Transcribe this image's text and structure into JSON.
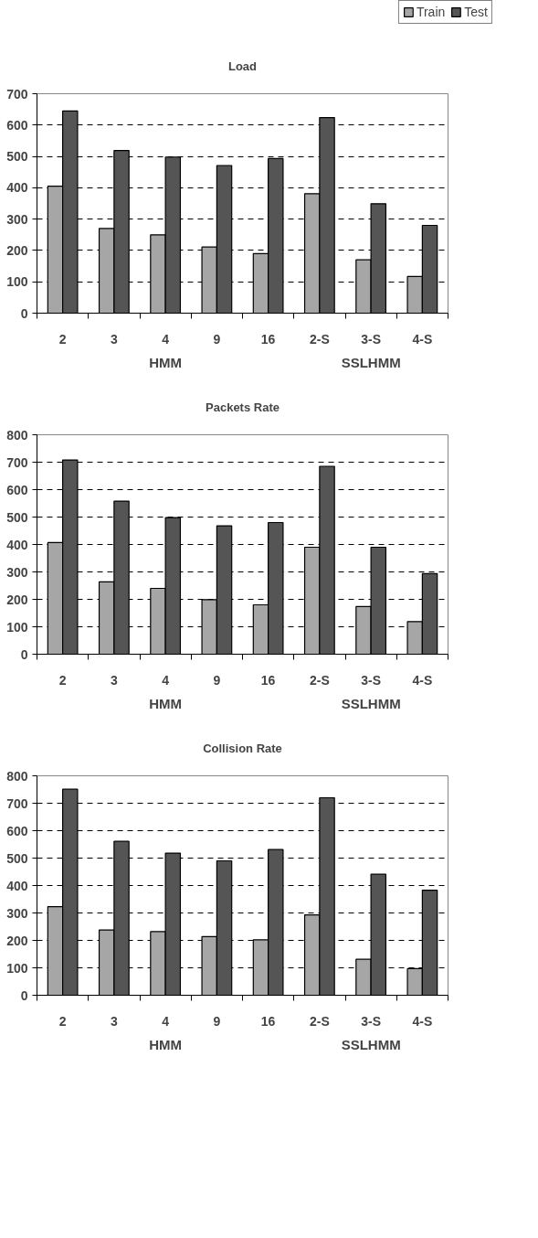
{
  "chart_data": [
    {
      "type": "bar",
      "title": "Load",
      "categories": [
        "2",
        "3",
        "4",
        "9",
        "16",
        "2-S",
        "3-S",
        "4-S"
      ],
      "series": [
        {
          "name": "Train",
          "color": "#a6a6a6",
          "values": [
            405,
            270,
            250,
            211,
            190,
            381,
            170,
            117
          ]
        },
        {
          "name": "Test",
          "color": "#555555",
          "values": [
            645,
            519,
            498,
            471,
            493,
            624,
            349,
            280
          ]
        }
      ],
      "ylim": [
        0,
        700
      ],
      "yticks": [
        0,
        100,
        200,
        300,
        400,
        500,
        600,
        700
      ],
      "grid": "y",
      "legend": "top right",
      "annotations": [
        "HMM",
        "SSLHMM"
      ]
    },
    {
      "type": "bar",
      "title": "Packets Rate",
      "categories": [
        "2",
        "3",
        "4",
        "9",
        "16",
        "2-S",
        "3-S",
        "4-S"
      ],
      "series": [
        {
          "color": "#a6a6a6",
          "values": [
            407,
            264,
            240,
            199,
            180,
            390,
            174,
            119
          ]
        },
        {
          "color": "#555555",
          "values": [
            708,
            558,
            498,
            468,
            480,
            685,
            390,
            294
          ]
        }
      ],
      "ylim": [
        0,
        800
      ],
      "yticks": [
        0,
        100,
        200,
        300,
        400,
        500,
        600,
        700,
        800
      ],
      "grid": "y",
      "annotations": [
        "HMM",
        "SSLHMM"
      ]
    },
    {
      "type": "bar",
      "title": "Collision Rate",
      "categories": [
        "2",
        "3",
        "4",
        "9",
        "16",
        "2-S",
        "3-S",
        "4-S"
      ],
      "series": [
        {
          "color": "#a6a6a6",
          "values": [
            323,
            238,
            232,
            214,
            202,
            293,
            131,
            97
          ]
        },
        {
          "color": "#555555",
          "values": [
            751,
            561,
            518,
            490,
            531,
            720,
            441,
            383
          ]
        }
      ],
      "ylim": [
        0,
        800
      ],
      "yticks": [
        0,
        100,
        200,
        300,
        400,
        500,
        600,
        700,
        800
      ],
      "grid": "y",
      "annotations": [
        "HMM",
        "SSLHMM"
      ]
    }
  ]
}
